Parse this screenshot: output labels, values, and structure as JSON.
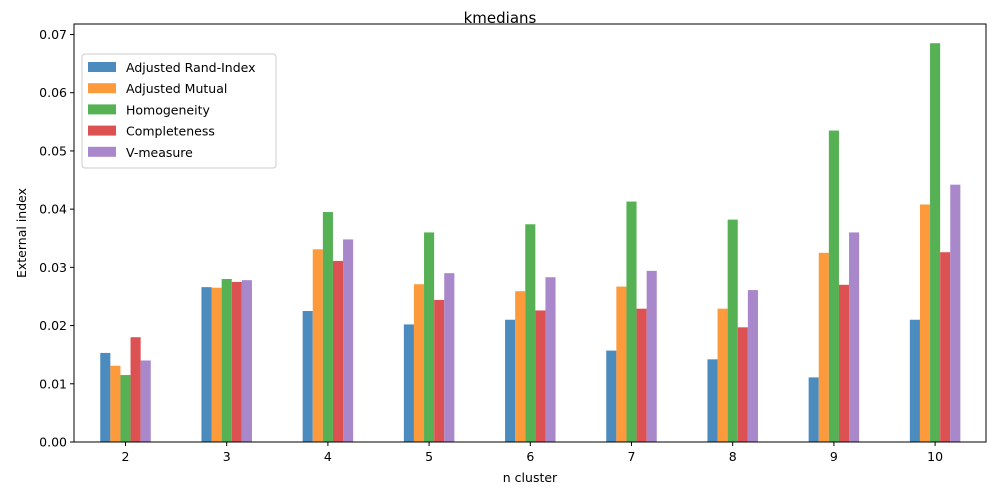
{
  "chart_data": {
    "type": "bar",
    "title": "kmedians",
    "xlabel": "n cluster",
    "ylabel": "External index",
    "categories": [
      "2",
      "3",
      "4",
      "5",
      "6",
      "7",
      "8",
      "9",
      "10"
    ],
    "ylim": [
      0,
      0.0718
    ],
    "yticks": [
      "0.00",
      "0.01",
      "0.02",
      "0.03",
      "0.04",
      "0.05",
      "0.06",
      "0.07"
    ],
    "ytick_values": [
      0,
      0.01,
      0.02,
      0.03,
      0.04,
      0.05,
      0.06,
      0.07
    ],
    "legend_position": "top-left",
    "series": [
      {
        "name": "Adjusted Rand-Index",
        "color": "#4b8bbe",
        "values": [
          0.0153,
          0.0266,
          0.0225,
          0.0202,
          0.021,
          0.0157,
          0.0142,
          0.0111,
          0.021
        ]
      },
      {
        "name": "Adjusted Mutual",
        "color": "#fc9a3c",
        "values": [
          0.0131,
          0.0265,
          0.0331,
          0.0271,
          0.0259,
          0.0267,
          0.0229,
          0.0325,
          0.0408
        ]
      },
      {
        "name": "Homogeneity",
        "color": "#56b155",
        "values": [
          0.0115,
          0.028,
          0.0395,
          0.036,
          0.0374,
          0.0413,
          0.0382,
          0.0535,
          0.0685
        ]
      },
      {
        "name": "Completeness",
        "color": "#dc5252",
        "values": [
          0.018,
          0.0275,
          0.0311,
          0.0244,
          0.0226,
          0.0229,
          0.0197,
          0.027,
          0.0326
        ]
      },
      {
        "name": "V-measure",
        "color": "#a987cb",
        "values": [
          0.014,
          0.0278,
          0.0348,
          0.029,
          0.0283,
          0.0294,
          0.0261,
          0.036,
          0.0442
        ]
      }
    ]
  }
}
